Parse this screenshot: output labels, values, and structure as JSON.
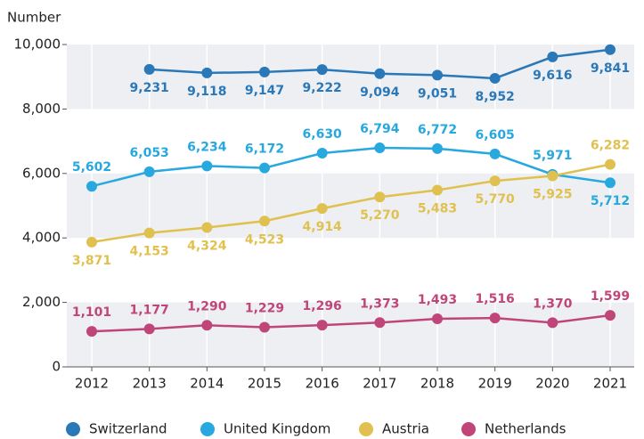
{
  "chart_data": {
    "type": "line",
    "y_axis_label": "Number",
    "categories": [
      "2012",
      "2013",
      "2014",
      "2015",
      "2016",
      "2017",
      "2018",
      "2019",
      "2020",
      "2021"
    ],
    "series": [
      {
        "name": "Switzerland",
        "color": "#2a78b8",
        "values": [
          null,
          9231,
          9118,
          9147,
          9222,
          9094,
          9051,
          8952,
          9616,
          9841
        ],
        "value_labels": [
          null,
          "9,231",
          "9,118",
          "9,147",
          "9,222",
          "9,094",
          "9,051",
          "8,952",
          "9,616",
          "9,841"
        ]
      },
      {
        "name": "United Kingdom",
        "color": "#27a8df",
        "values": [
          5602,
          6053,
          6234,
          6172,
          6630,
          6794,
          6772,
          6605,
          5971,
          5712
        ],
        "value_labels": [
          "5,602",
          "6,053",
          "6,234",
          "6,172",
          "6,630",
          "6,794",
          "6,772",
          "6,605",
          "5,971",
          "5,712"
        ]
      },
      {
        "name": "Austria",
        "color": "#e0c14f",
        "values": [
          3871,
          4153,
          4324,
          4523,
          4914,
          5270,
          5483,
          5770,
          5925,
          6282
        ],
        "value_labels": [
          "3,871",
          "4,153",
          "4,324",
          "4,523",
          "4,914",
          "5,270",
          "5,483",
          "5,770",
          "5,925",
          "6,282"
        ]
      },
      {
        "name": "Netherlands",
        "color": "#c0467a",
        "values": [
          1101,
          1177,
          1290,
          1229,
          1296,
          1373,
          1493,
          1516,
          1370,
          1599
        ],
        "value_labels": [
          "1,101",
          "1,177",
          "1,290",
          "1,229",
          "1,296",
          "1,373",
          "1,493",
          "1,516",
          "1,370",
          "1,599"
        ]
      }
    ],
    "ylim": [
      0,
      10000
    ],
    "yticks": [
      0,
      {
        "value": 2000,
        "label": "2,000"
      },
      {
        "value": 4000,
        "label": "4,000"
      },
      {
        "value": 6000,
        "label": "6,000"
      },
      {
        "value": 8000,
        "label": "8,000"
      },
      {
        "value": 10000,
        "label": "10,000"
      }
    ],
    "grid": true,
    "legend": "bottom"
  }
}
